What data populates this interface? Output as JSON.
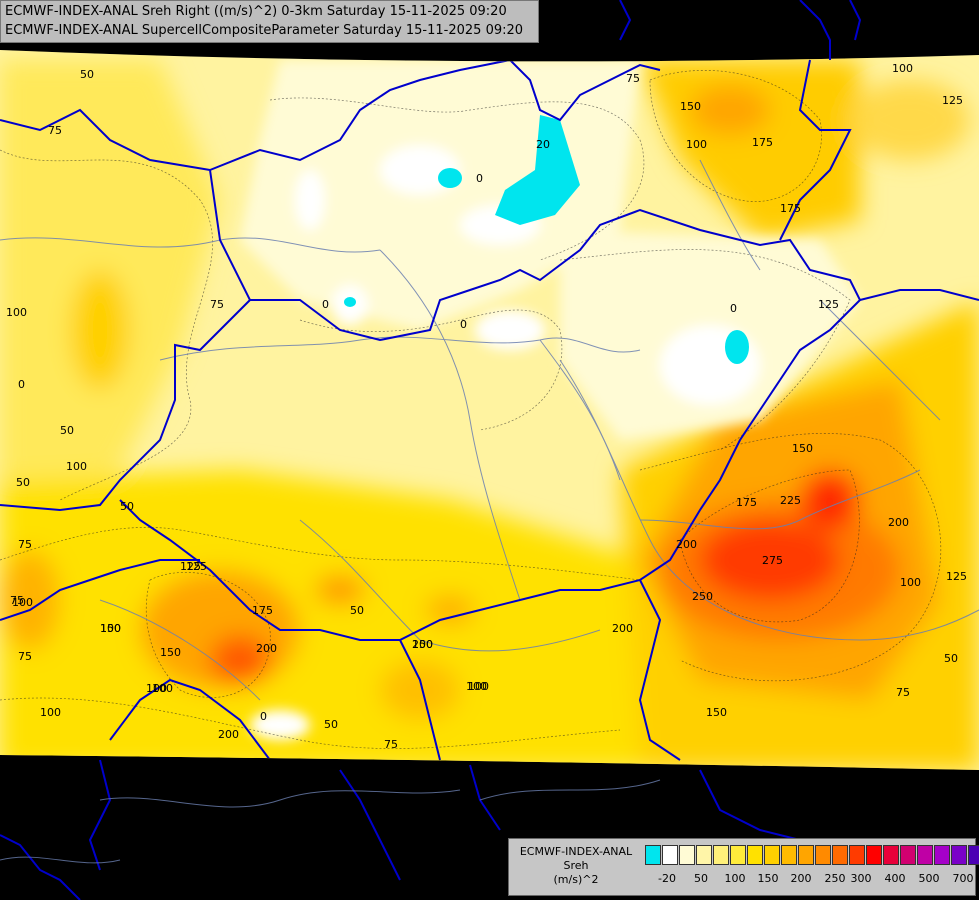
{
  "header": {
    "line1": "ECMWF-INDEX-ANAL Sreh Right ((m/s)^2) 0-3km Saturday 15-11-2025 09:20",
    "line2": "ECMWF-INDEX-ANAL SupercellCompositeParameter Saturday 15-11-2025 09:20"
  },
  "map": {
    "contour_labels": [
      "50",
      "75",
      "100",
      "75",
      "150",
      "175",
      "100",
      "125",
      "175",
      "100",
      "125",
      "20",
      "0",
      "0",
      "0",
      "75",
      "0",
      "0",
      "50",
      "100",
      "50",
      "50",
      "75",
      "100",
      "125",
      "150",
      "175",
      "225",
      "200",
      "275",
      "250",
      "200",
      "100",
      "125",
      "50",
      "75",
      "100",
      "150",
      "200",
      "200",
      "200",
      "100",
      "125",
      "150",
      "175",
      "50",
      "75",
      "100",
      "0",
      "50",
      "150",
      "75",
      "100",
      "150",
      "100",
      "100",
      "75",
      "200"
    ]
  },
  "legend": {
    "model": "ECMWF-INDEX-ANAL",
    "parameter": "Sreh",
    "unit": "(m/s)^2",
    "colors": [
      "#00e5ee",
      "#ffffff",
      "#fffbd5",
      "#fff5a8",
      "#fff07a",
      "#ffeb3b",
      "#ffe100",
      "#ffd000",
      "#ffbb00",
      "#ffa500",
      "#ff8a00",
      "#ff6a00",
      "#ff3b00",
      "#ff0000",
      "#e8003a",
      "#d10070",
      "#bf00a5",
      "#a500c8",
      "#7a00c8",
      "#4b00b4",
      "#1e0096",
      "#00007a"
    ],
    "ticks": [
      "-20",
      "50",
      "100",
      "150",
      "200",
      "250",
      "300",
      "400",
      "500",
      "700"
    ]
  },
  "colors": {
    "border": "#0000cc",
    "river": "#6b7fb0",
    "mask": "#000000"
  }
}
